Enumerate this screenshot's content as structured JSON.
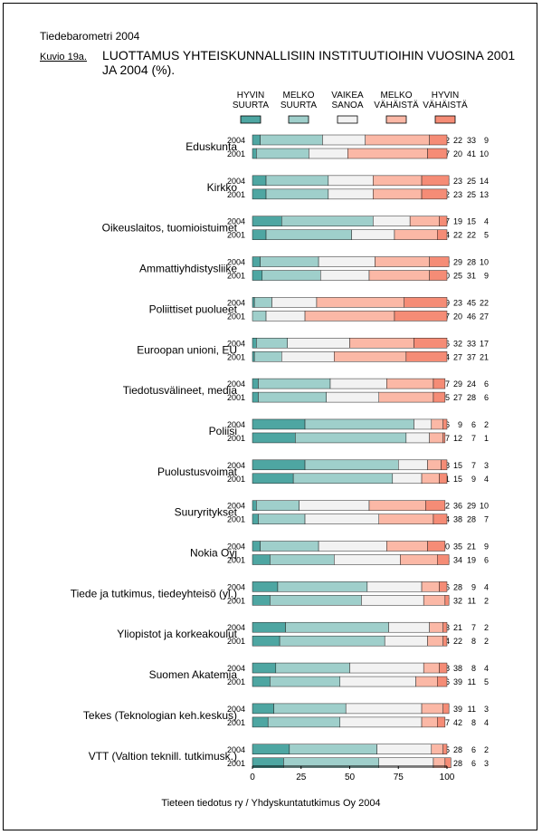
{
  "report_title": "Tiedebarometri 2004",
  "figure_number": "Kuvio 19a.",
  "figure_title": "LUOTTAMUS YHTEISKUNNALLISIIN INSTITUUTIOIHIN VUOSINA 2001 JA 2004 (%).",
  "source": "Tieteen tiedotus ry / Yhdyskuntatutkimus Oy 2004",
  "chart_data": {
    "type": "bar",
    "orientation": "horizontal",
    "stacked": true,
    "xlim": [
      0,
      100
    ],
    "xticks": [
      "0",
      "25",
      "50",
      "75",
      "100"
    ],
    "grid": false,
    "legend_position": "top",
    "series": [
      {
        "name": "HYVIN SUURTA",
        "label_lines": [
          "HYVIN",
          "SUURTA"
        ],
        "color": "#4ea6a2"
      },
      {
        "name": "MELKO SUURTA",
        "label_lines": [
          "MELKO",
          "SUURTA"
        ],
        "color": "#9fcfcb"
      },
      {
        "name": "VAIKEA SANOA",
        "label_lines": [
          "VAIKEA",
          "SANOA"
        ],
        "color": "#f2f2f2"
      },
      {
        "name": "MELKO VÄHÄISTÄ",
        "label_lines": [
          "MELKO",
          "VÄHÄISTÄ"
        ],
        "color": "#fbb8a6"
      },
      {
        "name": "HYVIN VÄHÄISTÄ",
        "label_lines": [
          "HYVIN",
          "VÄHÄISTÄ"
        ],
        "color": "#f58c76"
      }
    ],
    "groups": [
      {
        "category": "Eduskunta",
        "rows": [
          {
            "year": "2004",
            "values": [
              4,
              32,
              22,
              33,
              9
            ]
          },
          {
            "year": "2001",
            "values": [
              2,
              27,
              20,
              41,
              10
            ]
          }
        ]
      },
      {
        "category": "Kirkko",
        "rows": [
          {
            "year": "2004",
            "values": [
              7,
              32,
              23,
              25,
              14
            ]
          },
          {
            "year": "2001",
            "values": [
              7,
              32,
              23,
              25,
              13
            ]
          }
        ]
      },
      {
        "category": "Oikeuslaitos, tuomioistuimet",
        "rows": [
          {
            "year": "2004",
            "values": [
              15,
              47,
              19,
              15,
              4
            ]
          },
          {
            "year": "2001",
            "values": [
              7,
              44,
              22,
              22,
              5
            ]
          }
        ]
      },
      {
        "category": "Ammattiyhdistysliike",
        "rows": [
          {
            "year": "2004",
            "values": [
              4,
              30,
              29,
              28,
              10
            ]
          },
          {
            "year": "2001",
            "values": [
              5,
              30,
              25,
              31,
              9
            ]
          }
        ]
      },
      {
        "category": "Poliittiset puolueet",
        "rows": [
          {
            "year": "2004",
            "values": [
              1,
              9,
              23,
              45,
              22
            ]
          },
          {
            "year": "2001",
            "values": [
              0,
              7,
              20,
              46,
              27
            ]
          }
        ]
      },
      {
        "category": "Euroopan unioni, EU",
        "rows": [
          {
            "year": "2004",
            "values": [
              2,
              16,
              32,
              33,
              17
            ]
          },
          {
            "year": "2001",
            "values": [
              1,
              14,
              27,
              37,
              21
            ]
          }
        ]
      },
      {
        "category": "Tiedotusvälineet, media",
        "rows": [
          {
            "year": "2004",
            "values": [
              3,
              37,
              29,
              24,
              6
            ]
          },
          {
            "year": "2001",
            "values": [
              3,
              35,
              27,
              28,
              6
            ]
          }
        ]
      },
      {
        "category": "Poliisi",
        "rows": [
          {
            "year": "2004",
            "values": [
              27,
              56,
              9,
              6,
              2
            ]
          },
          {
            "year": "2001",
            "values": [
              22,
              57,
              12,
              7,
              1
            ]
          }
        ]
      },
      {
        "category": "Puolustusvoimat",
        "rows": [
          {
            "year": "2004",
            "values": [
              27,
              48,
              15,
              7,
              3
            ]
          },
          {
            "year": "2001",
            "values": [
              21,
              51,
              15,
              9,
              4
            ]
          }
        ]
      },
      {
        "category": "Suuryritykset",
        "rows": [
          {
            "year": "2004",
            "values": [
              2,
              22,
              36,
              29,
              10
            ]
          },
          {
            "year": "2001",
            "values": [
              3,
              24,
              38,
              28,
              7
            ]
          }
        ]
      },
      {
        "category": "Nokia Oyj",
        "rows": [
          {
            "year": "2004",
            "values": [
              4,
              30,
              35,
              21,
              9
            ]
          },
          {
            "year": "2001",
            "values": [
              9,
              33,
              34,
              19,
              6
            ]
          }
        ]
      },
      {
        "category": "Tiede ja tutkimus, tiedeyhteisö (yl.)",
        "rows": [
          {
            "year": "2004",
            "values": [
              13,
              46,
              28,
              9,
              4
            ]
          },
          {
            "year": "2001",
            "values": [
              9,
              47,
              32,
              11,
              2
            ]
          }
        ]
      },
      {
        "category": "Yliopistot ja korkeakoulut",
        "rows": [
          {
            "year": "2004",
            "values": [
              17,
              53,
              21,
              7,
              2
            ]
          },
          {
            "year": "2001",
            "values": [
              14,
              54,
              22,
              8,
              2
            ]
          }
        ]
      },
      {
        "category": "Suomen Akatemia",
        "rows": [
          {
            "year": "2004",
            "values": [
              12,
              38,
              38,
              8,
              4
            ]
          },
          {
            "year": "2001",
            "values": [
              9,
              36,
              39,
              11,
              5
            ]
          }
        ]
      },
      {
        "category": "Tekes (Teknologian keh.keskus)",
        "rows": [
          {
            "year": "2004",
            "values": [
              11,
              37,
              39,
              11,
              3
            ]
          },
          {
            "year": "2001",
            "values": [
              8,
              37,
              42,
              8,
              4
            ]
          }
        ]
      },
      {
        "category": "VTT (Valtion teknill. tutkimusk.)",
        "rows": [
          {
            "year": "2004",
            "values": [
              19,
              45,
              28,
              6,
              2
            ]
          },
          {
            "year": "2001",
            "values": [
              16,
              49,
              28,
              6,
              3
            ]
          }
        ]
      }
    ]
  }
}
